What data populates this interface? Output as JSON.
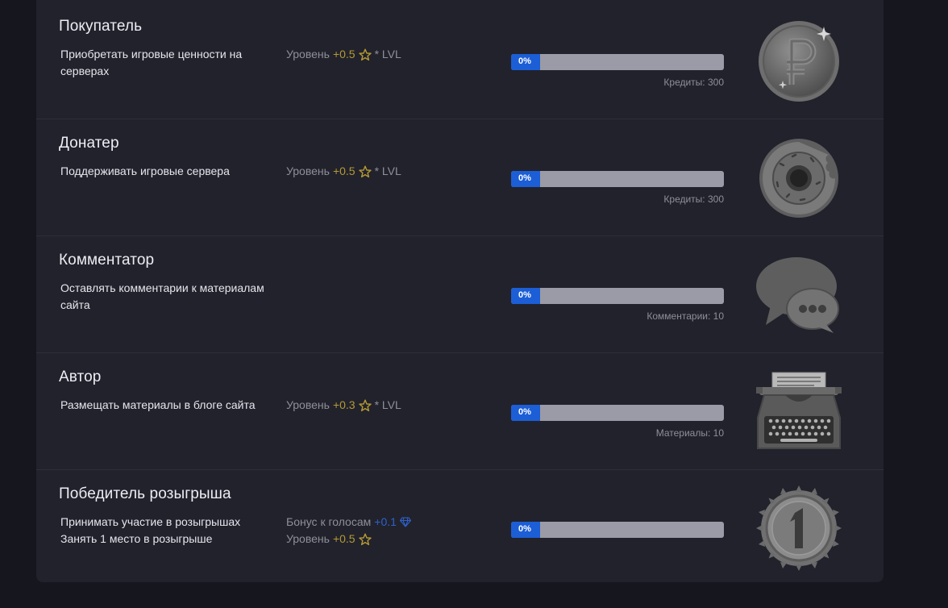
{
  "achievements": [
    {
      "title": "Покупатель",
      "desc": [
        "Приобретать игровые ценности на",
        "серверах"
      ],
      "reward": {
        "prefix": "Уровень",
        "value": "+0.5",
        "suffix": "* LVL"
      },
      "progress": "0%",
      "goal": "Кредиты: 300",
      "badge_icon": "ruble-coin-icon"
    },
    {
      "title": "Донатер",
      "desc": [
        "Поддерживать игровые сервера"
      ],
      "reward": {
        "prefix": "Уровень",
        "value": "+0.5",
        "suffix": "* LVL"
      },
      "progress": "0%",
      "goal": "Кредиты: 300",
      "badge_icon": "donut-icon"
    },
    {
      "title": "Комментатор",
      "desc": [
        "Оставлять комментарии к материалам",
        "сайта"
      ],
      "progress": "0%",
      "goal": "Комментарии: 10",
      "badge_icon": "chat-bubbles-icon"
    },
    {
      "title": "Автор",
      "desc": [
        "Размещать материалы в блоге сайта"
      ],
      "reward": {
        "prefix": "Уровень",
        "value": "+0.3",
        "suffix": "* LVL"
      },
      "progress": "0%",
      "goal": "Материалы: 10",
      "badge_icon": "typewriter-icon"
    },
    {
      "title": "Победитель розыгрыша",
      "desc": [
        "Принимать участие в розыгрышах",
        "Занять 1 место в розыгрыше"
      ],
      "bonus": {
        "prefix": "Бонус к голосам",
        "value": "+0.1"
      },
      "reward": {
        "prefix": "Уровень",
        "value": "+0.5"
      },
      "progress": "0%",
      "badge_icon": "first-place-medal-icon"
    }
  ],
  "colors": {
    "background": "#15161e",
    "panel": "#21222c",
    "accent_blue": "#1c5ed6",
    "gold": "#b59a33",
    "progress_track": "#9a9ba6"
  }
}
